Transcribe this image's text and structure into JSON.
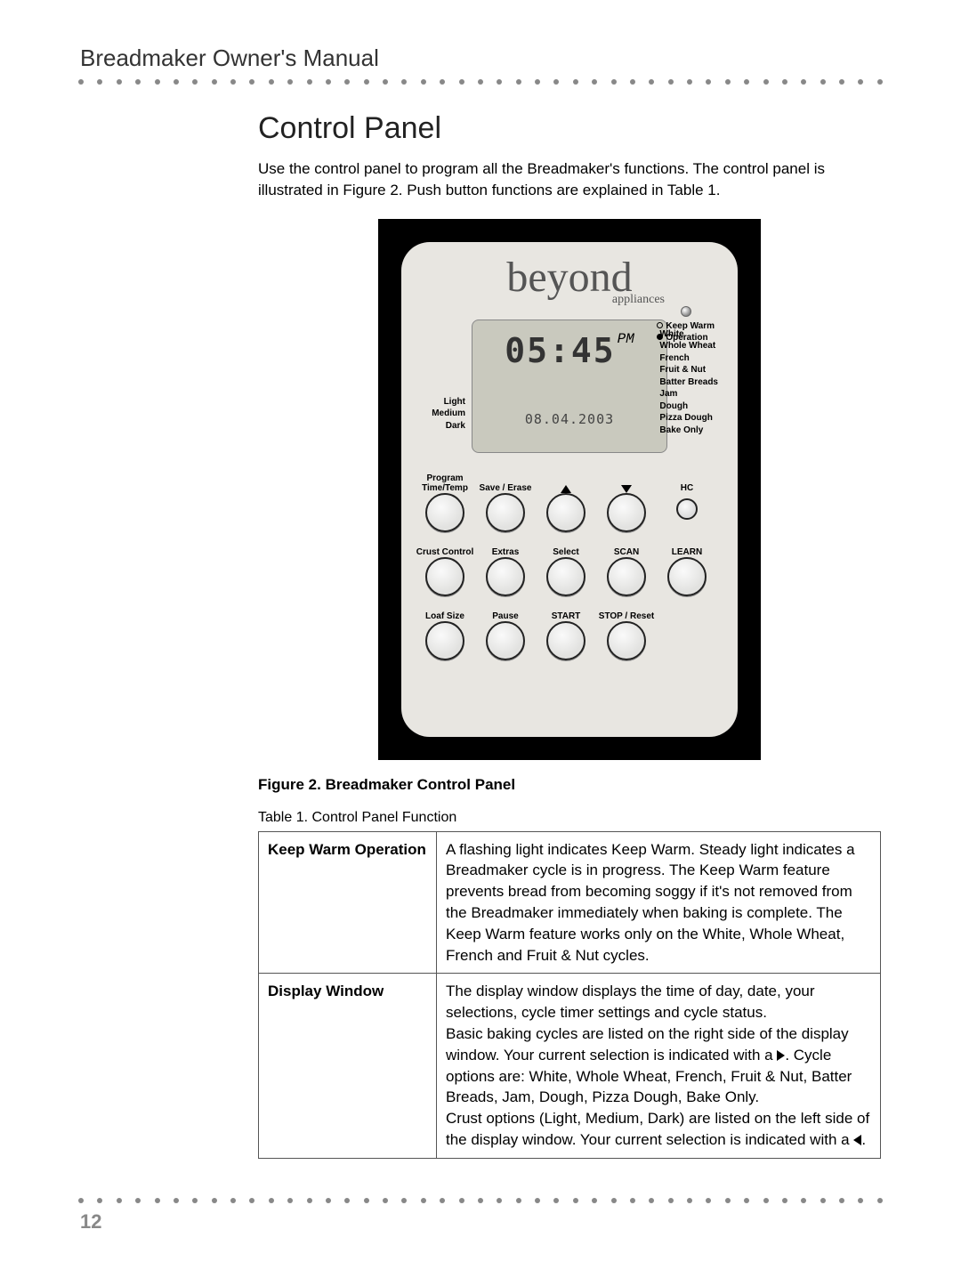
{
  "header": {
    "manual_title": "Breadmaker Owner's Manual"
  },
  "section": {
    "title": "Control Panel",
    "intro": "Use the control panel to program all the Breadmaker's functions. The control panel is illustrated in Figure 2. Push button functions are explained in Table 1."
  },
  "panel": {
    "brand": "beyond",
    "brand_sub": "appliances",
    "indicators": {
      "keep_warm": "Keep Warm",
      "operation": "Operation"
    },
    "lcd": {
      "time": "05:45",
      "ampm": "PM",
      "date": "08.04.2003"
    },
    "crust_labels": [
      "Light",
      "Medium",
      "Dark"
    ],
    "cycle_labels": [
      "White",
      "Whole Wheat",
      "French",
      "Fruit & Nut",
      "Batter Breads",
      "Jam",
      "Dough",
      "Pizza Dough",
      "Bake Only"
    ],
    "buttons": {
      "row1": [
        {
          "label": "Program\nTime/Temp"
        },
        {
          "label": "Save / Erase"
        },
        {
          "label": "▲",
          "arrow": "up"
        },
        {
          "label": "▼",
          "arrow": "down"
        },
        {
          "label": "HC",
          "small": true
        }
      ],
      "row2": [
        {
          "label": "Crust Control"
        },
        {
          "label": "Extras"
        },
        {
          "label": "Select"
        },
        {
          "label": "SCAN"
        },
        {
          "label": "LEARN"
        }
      ],
      "row3": [
        {
          "label": "Loaf Size"
        },
        {
          "label": "Pause"
        },
        {
          "label": "START"
        },
        {
          "label": "STOP / Reset"
        }
      ]
    }
  },
  "figure_caption": "Figure 2. Breadmaker Control Panel",
  "table": {
    "caption": "Table 1. Control Panel Function",
    "rows": [
      {
        "label": "Keep Warm Operation",
        "desc": "A flashing light indicates Keep Warm. Steady light indicates a Breadmaker cycle is in progress. The Keep Warm feature prevents bread from becoming soggy if it's not removed from the Breadmaker immediately when baking is complete. The Keep Warm feature works only on the White, Whole Wheat, French and Fruit & Nut cycles."
      },
      {
        "label": "Display Window",
        "desc_parts": [
          "The display window displays the time of day, date, your selections, cycle timer settings and cycle status.",
          "Basic baking cycles are listed on the right side of the display window. Your current selection is indicated with a ",
          ". Cycle options are: White, Whole Wheat, French, Fruit & Nut, Batter Breads, Jam, Dough, Pizza Dough, Bake Only.",
          "Crust options (Light, Medium, Dark) are listed on the left side of the display window. Your current selection is indicated with a ",
          "."
        ]
      }
    ]
  },
  "page_number": "12",
  "dots_count": 43
}
